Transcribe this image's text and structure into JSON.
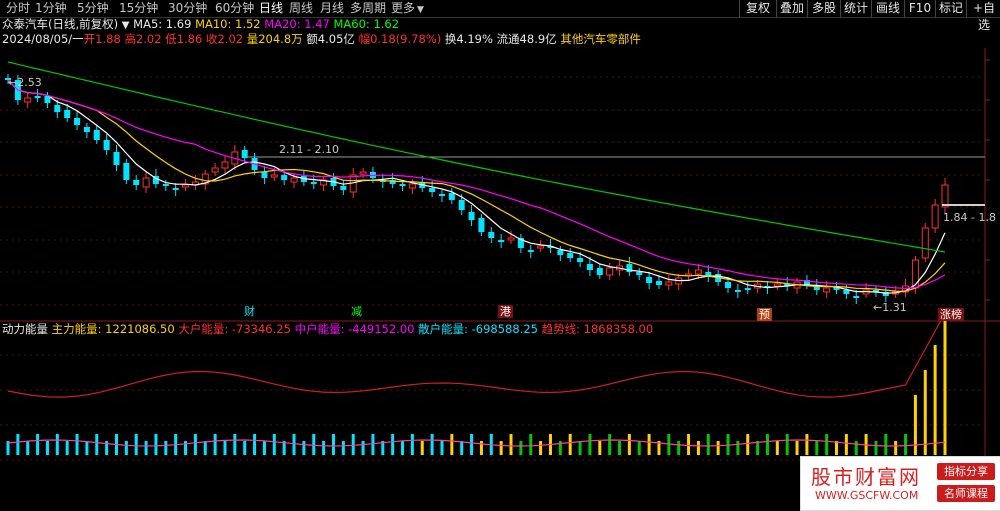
{
  "toolbar": {
    "periods": [
      "分时",
      "1分钟",
      "5分钟",
      "15分钟",
      "30分钟",
      "60分钟",
      "日线",
      "周线",
      "月线",
      "多周期",
      "更多"
    ],
    "active": "日线",
    "right_buttons": [
      "复权",
      "叠加",
      "多股",
      "统计",
      "画线",
      "F10",
      "标记",
      "+自选"
    ]
  },
  "info1": {
    "name": "众泰汽车(日线,前复权)",
    "ma5": "MA5: 1.69",
    "ma10": "MA10: 1.52",
    "ma20": "MA20: 1.47",
    "ma60": "MA60: 1.62"
  },
  "info2": {
    "date": "2024/08/05/一",
    "open": "开1.88",
    "high": "高2.02",
    "low": "低1.86",
    "close": "收2.02",
    "volume": "量204.8万",
    "amount": "额4.05亿",
    "change": "幅0.18(9.78%)",
    "turnover": "换4.19%",
    "float": "流通48.9亿",
    "sector": "其他汽车零部件"
  },
  "chart_annotations": {
    "high_label": "2.53",
    "range_label": "2.11 - 2.10",
    "low_label": "1.31",
    "right_label": "1.84 - 1.8"
  },
  "events": [
    "财",
    "减",
    "港",
    "预",
    "涨榜"
  ],
  "indicator": {
    "name": "动力能量",
    "main": "主力能量: 1221086.50",
    "big": "大户能量: -73346.25",
    "mid": "中户能量: -449152.00",
    "retail": "散户能量: -698588.25",
    "trend": "趋势线: 1868358.00"
  },
  "watermark": {
    "title": "股市财富网",
    "url": "WWW.GSCFW.COM",
    "badge1": "指标分享",
    "badge2": "名师课程"
  },
  "colors": {
    "up": "#ff3030",
    "down": "#00e5ff",
    "ma5": "#ffffff",
    "ma10": "#ffd200",
    "ma20": "#ff00ff",
    "ma60": "#00c800"
  }
}
